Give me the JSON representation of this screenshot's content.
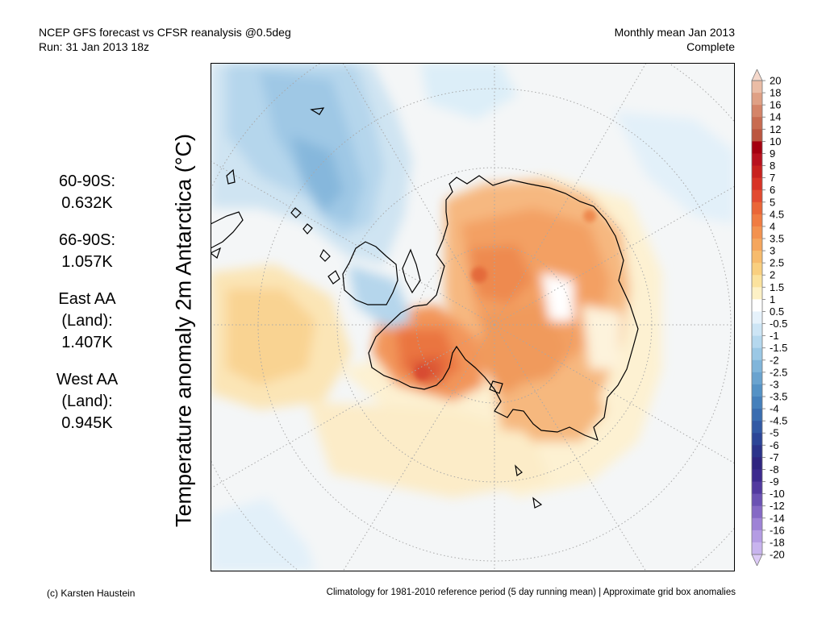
{
  "header": {
    "title": "NCEP GFS forecast vs CFSR reanalysis @0.5deg",
    "run": "Run: 31 Jan 2013 18z",
    "period": "Monthly mean Jan 2013",
    "status": "Complete"
  },
  "map": {
    "ylabel": "Temperature anomaly 2m Antarctica (°C)",
    "region": "Antarctica"
  },
  "stats": [
    {
      "label": "60-90S:",
      "value": "0.632K"
    },
    {
      "label": "66-90S:",
      "value": "1.057K"
    },
    {
      "label": "East AA (Land):",
      "value": "1.407K"
    },
    {
      "label": "West AA (Land):",
      "value": "0.945K"
    }
  ],
  "colorbar": {
    "levels": [
      "20",
      "18",
      "16",
      "14",
      "12",
      "10",
      "9",
      "8",
      "7",
      "6",
      "5",
      "4.5",
      "4",
      "3.5",
      "3",
      "2.5",
      "2",
      "1.5",
      "1",
      "0.5",
      "-0.5",
      "-1",
      "-1.5",
      "-2",
      "-2.5",
      "-3",
      "-3.5",
      "-4",
      "-4.5",
      "-5",
      "-6",
      "-7",
      "-8",
      "-9",
      "-10",
      "-12",
      "-14",
      "-16",
      "-18",
      "-20"
    ],
    "colors": [
      "#f5d8cb",
      "#eabca5",
      "#dfa085",
      "#d48468",
      "#c86b50",
      "#bb5640",
      "#a40010",
      "#b8111e",
      "#c8211e",
      "#d83326",
      "#e24a30",
      "#ea6637",
      "#f07c42",
      "#f3924f",
      "#f5a65d",
      "#f7bb6c",
      "#f9cf7f",
      "#fbe29d",
      "#fdf1c6",
      "#ffffff",
      "#e6f2fb",
      "#cde5f5",
      "#b5d8ee",
      "#9bc8e5",
      "#80b5da",
      "#6aa3cf",
      "#5592c5",
      "#4580bb",
      "#3a6db0",
      "#3259a4",
      "#2c4597",
      "#2b338a",
      "#2f2580",
      "#3d2a8e",
      "#52399f",
      "#6b52b3",
      "#8569c5",
      "#9e83d6",
      "#b49ce3",
      "#c8b4ee",
      "#dccaf6"
    ]
  },
  "footer": {
    "credit": "(c) Karsten Haustein",
    "note": "Climatology for 1981-2010 reference period (5 day running mean) | Approximate grid box anomalies"
  }
}
